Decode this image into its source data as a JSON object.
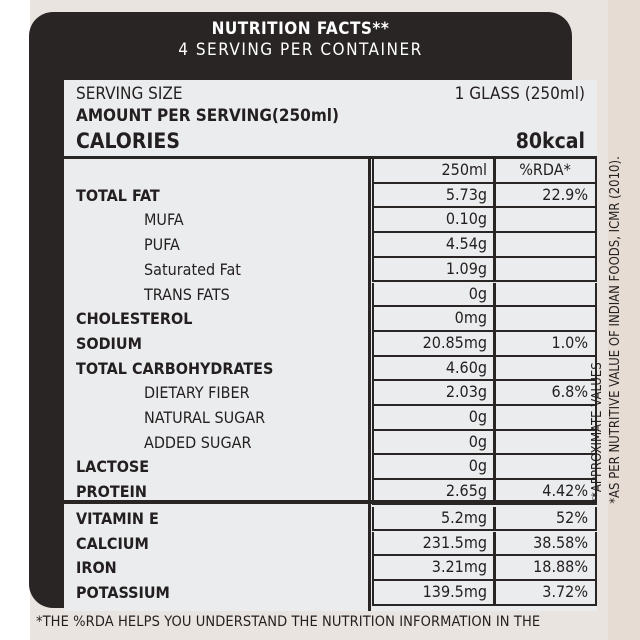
{
  "header": {
    "title": "NUTRITION FACTS**",
    "servings": "4 SERVING PER CONTAINER"
  },
  "serving": {
    "size_label": "SERVING SIZE",
    "size_value": "1 GLASS (250ml)",
    "amount_label": "AMOUNT PER SERVING(250ml)",
    "calories_label": "CALORIES",
    "calories_value": "80kcal"
  },
  "columns": {
    "amount": "250ml",
    "rda": "%RDA*"
  },
  "rows": [
    {
      "label": "TOTAL FAT",
      "amount": "5.73g",
      "rda": "22.9%"
    },
    {
      "label": "MUFA",
      "amount": "0.10g",
      "rda": ""
    },
    {
      "label": "PUFA",
      "amount": "4.54g",
      "rda": ""
    },
    {
      "label": "Saturated Fat",
      "amount": "1.09g",
      "rda": ""
    },
    {
      "label": "TRANS FATS",
      "amount": "0g",
      "rda": ""
    },
    {
      "label": "CHOLESTEROL",
      "amount": "0mg",
      "rda": ""
    },
    {
      "label": "SODIUM",
      "amount": "20.85mg",
      "rda": "1.0%"
    },
    {
      "label": "TOTAL CARBOHYDRATES",
      "amount": "4.60g",
      "rda": ""
    },
    {
      "label": "DIETARY FIBER",
      "amount": "2.03g",
      "rda": "6.8%"
    },
    {
      "label": "NATURAL SUGAR",
      "amount": "0g",
      "rda": ""
    },
    {
      "label": "ADDED SUGAR",
      "amount": "0g",
      "rda": ""
    },
    {
      "label": "LACTOSE",
      "amount": "0g",
      "rda": ""
    },
    {
      "label": "PROTEIN",
      "amount": "2.65g",
      "rda": "4.42%"
    },
    {
      "label": "VITAMIN E",
      "amount": "5.2mg",
      "rda": "52%"
    },
    {
      "label": "CALCIUM",
      "amount": "231.5mg",
      "rda": "38.58%"
    },
    {
      "label": "IRON",
      "amount": "3.21mg",
      "rda": "18.88%"
    },
    {
      "label": "POTASSIUM",
      "amount": "139.5mg",
      "rda": "3.72%"
    }
  ],
  "side_note": {
    "line1": "**APPROXIMATE VALUES",
    "line2": "*AS PER NUTRITIVE VALUE OF INDIAN FOODS, ICMR (2010)."
  },
  "footnote": "*THE %RDA HELPS YOU UNDERSTAND THE NUTRITION INFORMATION IN THE"
}
